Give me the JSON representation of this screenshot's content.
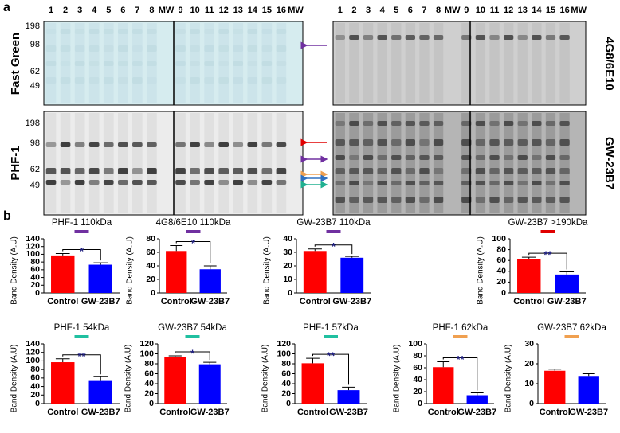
{
  "panel_a": {
    "label": "a",
    "lanes_left": [
      "1",
      "2",
      "3",
      "4",
      "5",
      "6",
      "7",
      "8",
      "MW",
      "9",
      "10",
      "11",
      "12",
      "13",
      "14",
      "15",
      "16",
      "MW"
    ],
    "lanes_right": [
      "1",
      "2",
      "3",
      "4",
      "5",
      "6",
      "7",
      "8",
      "MW",
      "9",
      "10",
      "11",
      "12",
      "13",
      "14",
      "15",
      "16",
      "MW"
    ],
    "mw_markers_top": [
      "198",
      "98",
      "62",
      "49"
    ],
    "mw_markers_bottom": [
      "198",
      "98",
      "62",
      "49"
    ],
    "blots": [
      "Fast Green",
      "PHF-1",
      "4G8/6E10",
      "GW-23B7"
    ]
  },
  "panel_b": {
    "label": "b"
  },
  "chart_data": [
    {
      "type": "bar",
      "title": "PHF-1 110kDa",
      "categories": [
        "Control",
        "GW-23B7"
      ],
      "values": [
        97,
        73
      ],
      "errors": [
        5,
        5
      ],
      "colors": [
        "#ff0000",
        "#0000ff"
      ],
      "ylim": [
        0,
        140
      ],
      "yticks": [
        0,
        20,
        40,
        60,
        80,
        100,
        120,
        140
      ],
      "ylabel": "Band Density (A.U)",
      "significance": "*",
      "marker_color": "#7030a0"
    },
    {
      "type": "bar",
      "title": "4G8/6E10 110kDa",
      "categories": [
        "Control",
        "GW-23B7"
      ],
      "values": [
        62,
        35
      ],
      "errors": [
        8,
        5
      ],
      "colors": [
        "#ff0000",
        "#0000ff"
      ],
      "ylim": [
        0,
        80
      ],
      "yticks": [
        0,
        20,
        40,
        60,
        80
      ],
      "ylabel": "Band Density (A.U)",
      "significance": "*",
      "marker_color": "#7030a0"
    },
    {
      "type": "bar",
      "title": "GW-23B7 110kDa",
      "categories": [
        "Control",
        "GW-23B7"
      ],
      "values": [
        31,
        26
      ],
      "errors": [
        1.5,
        1
      ],
      "colors": [
        "#ff0000",
        "#0000ff"
      ],
      "ylim": [
        0,
        40
      ],
      "yticks": [
        0,
        10,
        20,
        30,
        40
      ],
      "ylabel": "Band Density (A.U)",
      "significance": "*",
      "marker_color": "#7030a0"
    },
    {
      "type": "bar",
      "title": "GW-23B7 >190kDa",
      "categories": [
        "Control",
        "GW-23B7"
      ],
      "values": [
        62,
        34
      ],
      "errors": [
        4,
        5
      ],
      "colors": [
        "#ff0000",
        "#0000ff"
      ],
      "ylim": [
        0,
        100
      ],
      "yticks": [
        0,
        20,
        40,
        60,
        80,
        100
      ],
      "ylabel": "Band Density (A.U)",
      "significance": "**",
      "marker_color": "#e00000"
    },
    {
      "type": "bar",
      "title": "PHF-1 54kDa",
      "categories": [
        "Control",
        "GW-23B7"
      ],
      "values": [
        97,
        53
      ],
      "errors": [
        8,
        10
      ],
      "colors": [
        "#ff0000",
        "#0000ff"
      ],
      "ylim": [
        0,
        140
      ],
      "yticks": [
        0,
        20,
        40,
        60,
        80,
        100,
        120,
        140
      ],
      "ylabel": "Band Density (A.U)",
      "significance": "**",
      "marker_color": "#20c0a0"
    },
    {
      "type": "bar",
      "title": "GW-23B7 54kDa",
      "categories": [
        "Control",
        "GW-23B7"
      ],
      "values": [
        93,
        79
      ],
      "errors": [
        3,
        4
      ],
      "colors": [
        "#ff0000",
        "#0000ff"
      ],
      "ylim": [
        0,
        120
      ],
      "yticks": [
        0,
        20,
        40,
        60,
        80,
        100,
        120
      ],
      "ylabel": "Band Density (A.U)",
      "significance": "*",
      "marker_color": "#20c0a0"
    },
    {
      "type": "bar",
      "title": "PHF-1 57kDa",
      "categories": [
        "Control",
        "GW-23B7"
      ],
      "values": [
        81,
        27
      ],
      "errors": [
        10,
        6
      ],
      "colors": [
        "#ff0000",
        "#0000ff"
      ],
      "ylim": [
        0,
        120
      ],
      "yticks": [
        0,
        20,
        40,
        60,
        80,
        100,
        120
      ],
      "ylabel": "Band Density (A.U)",
      "significance": "**",
      "marker_color": "#20c0a0"
    },
    {
      "type": "bar",
      "title": "PHF-1 62kDa",
      "categories": [
        "Control",
        "GW-23B7"
      ],
      "values": [
        61,
        14
      ],
      "errors": [
        9,
        4
      ],
      "colors": [
        "#ff0000",
        "#0000ff"
      ],
      "ylim": [
        0,
        100
      ],
      "yticks": [
        0,
        20,
        40,
        60,
        80,
        100
      ],
      "ylabel": "Band Density (A.U)",
      "significance": "**",
      "marker_color": "#f0a050"
    },
    {
      "type": "bar",
      "title": "GW-23B7 62kDa",
      "categories": [
        "Control",
        "GW-23B7"
      ],
      "values": [
        16.5,
        13.5
      ],
      "errors": [
        0.8,
        1.5
      ],
      "colors": [
        "#ff0000",
        "#0000ff"
      ],
      "ylim": [
        0,
        30
      ],
      "yticks": [
        0,
        10,
        20,
        30
      ],
      "ylabel": "Band Density (A.U)",
      "marker_color": "#f0a050"
    }
  ]
}
